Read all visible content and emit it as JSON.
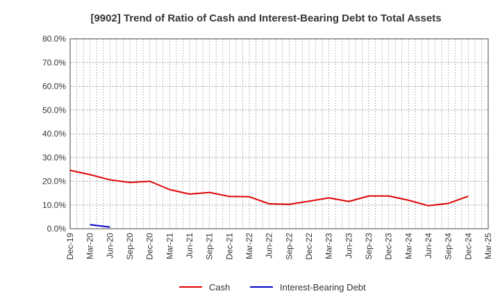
{
  "chart_data": {
    "type": "line",
    "title": "[9902]  Trend of Ratio of Cash and Interest-Bearing Debt to Total Assets",
    "xlabel": "",
    "ylabel": "",
    "categories": [
      "Dec-19",
      "Mar-20",
      "Jun-20",
      "Sep-20",
      "Dec-20",
      "Mar-21",
      "Jun-21",
      "Sep-21",
      "Dec-21",
      "Mar-22",
      "Jun-22",
      "Sep-22",
      "Dec-22",
      "Mar-23",
      "Jun-23",
      "Sep-23",
      "Dec-23",
      "Mar-24",
      "Jun-24",
      "Sep-24",
      "Dec-24",
      "Mar-25"
    ],
    "y_ticks": [
      "0.0%",
      "10.0%",
      "20.0%",
      "30.0%",
      "40.0%",
      "50.0%",
      "60.0%",
      "70.0%",
      "80.0%"
    ],
    "ylim": [
      0,
      80
    ],
    "grid": true,
    "legend_position": "bottom",
    "series": [
      {
        "name": "Cash",
        "color": "#e00000",
        "values": [
          24.6,
          22.8,
          20.6,
          19.5,
          20.0,
          16.5,
          14.6,
          15.3,
          13.6,
          13.5,
          10.5,
          10.3,
          11.6,
          13.0,
          11.5,
          13.8,
          13.8,
          12.0,
          9.7,
          10.7,
          13.7,
          null
        ]
      },
      {
        "name": "Interest-Bearing Debt",
        "color": "#0000cc",
        "values": [
          null,
          1.7,
          0.7,
          null,
          null,
          null,
          null,
          null,
          null,
          null,
          null,
          null,
          null,
          null,
          null,
          null,
          null,
          null,
          null,
          null,
          null,
          null
        ]
      }
    ]
  }
}
